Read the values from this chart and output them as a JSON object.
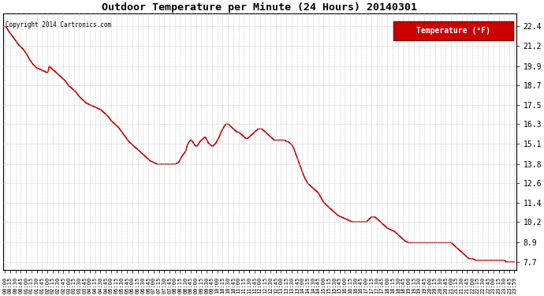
{
  "title": "Outdoor Temperature per Minute (24 Hours) 20140301",
  "copyright_text": "Copyright 2014 Cartronics.com",
  "legend_label": "Temperature (°F)",
  "line_color": "#cc0000",
  "background_color": "#ffffff",
  "grid_color": "#bbbbbb",
  "yticks": [
    7.7,
    8.9,
    10.2,
    11.4,
    12.6,
    13.8,
    15.1,
    16.3,
    17.5,
    18.7,
    19.9,
    21.2,
    22.4
  ],
  "ylim": [
    7.2,
    23.2
  ],
  "total_minutes": 1440,
  "temperature_profile": [
    [
      0,
      22.4
    ],
    [
      5,
      22.3
    ],
    [
      10,
      22.1
    ],
    [
      20,
      21.8
    ],
    [
      30,
      21.5
    ],
    [
      40,
      21.2
    ],
    [
      50,
      21.0
    ],
    [
      60,
      20.7
    ],
    [
      70,
      20.3
    ],
    [
      80,
      20.0
    ],
    [
      90,
      19.8
    ],
    [
      100,
      19.7
    ],
    [
      110,
      19.6
    ],
    [
      120,
      19.5
    ],
    [
      125,
      19.9
    ],
    [
      130,
      19.8
    ],
    [
      140,
      19.6
    ],
    [
      150,
      19.4
    ],
    [
      160,
      19.2
    ],
    [
      170,
      19.0
    ],
    [
      180,
      18.7
    ],
    [
      190,
      18.5
    ],
    [
      200,
      18.3
    ],
    [
      210,
      18.0
    ],
    [
      220,
      17.8
    ],
    [
      230,
      17.6
    ],
    [
      240,
      17.5
    ],
    [
      250,
      17.4
    ],
    [
      260,
      17.3
    ],
    [
      270,
      17.2
    ],
    [
      280,
      17.0
    ],
    [
      290,
      16.8
    ],
    [
      300,
      16.5
    ],
    [
      310,
      16.3
    ],
    [
      320,
      16.1
    ],
    [
      330,
      15.8
    ],
    [
      340,
      15.5
    ],
    [
      350,
      15.2
    ],
    [
      360,
      15.0
    ],
    [
      370,
      14.8
    ],
    [
      380,
      14.6
    ],
    [
      390,
      14.4
    ],
    [
      400,
      14.2
    ],
    [
      410,
      14.0
    ],
    [
      420,
      13.9
    ],
    [
      430,
      13.8
    ],
    [
      440,
      13.8
    ],
    [
      450,
      13.8
    ],
    [
      460,
      13.8
    ],
    [
      470,
      13.8
    ],
    [
      480,
      13.8
    ],
    [
      490,
      13.9
    ],
    [
      495,
      14.1
    ],
    [
      500,
      14.3
    ],
    [
      510,
      14.6
    ],
    [
      515,
      15.0
    ],
    [
      520,
      15.2
    ],
    [
      525,
      15.3
    ],
    [
      530,
      15.2
    ],
    [
      535,
      15.0
    ],
    [
      540,
      14.9
    ],
    [
      545,
      15.0
    ],
    [
      550,
      15.2
    ],
    [
      555,
      15.3
    ],
    [
      560,
      15.4
    ],
    [
      565,
      15.5
    ],
    [
      570,
      15.3
    ],
    [
      575,
      15.1
    ],
    [
      580,
      15.0
    ],
    [
      585,
      14.9
    ],
    [
      590,
      15.0
    ],
    [
      595,
      15.1
    ],
    [
      600,
      15.3
    ],
    [
      605,
      15.5
    ],
    [
      610,
      15.8
    ],
    [
      615,
      16.0
    ],
    [
      620,
      16.2
    ],
    [
      625,
      16.3
    ],
    [
      630,
      16.3
    ],
    [
      635,
      16.2
    ],
    [
      640,
      16.1
    ],
    [
      645,
      16.0
    ],
    [
      650,
      15.9
    ],
    [
      655,
      15.8
    ],
    [
      660,
      15.8
    ],
    [
      665,
      15.7
    ],
    [
      670,
      15.6
    ],
    [
      675,
      15.5
    ],
    [
      680,
      15.4
    ],
    [
      685,
      15.4
    ],
    [
      690,
      15.5
    ],
    [
      695,
      15.6
    ],
    [
      700,
      15.7
    ],
    [
      705,
      15.8
    ],
    [
      710,
      15.9
    ],
    [
      715,
      16.0
    ],
    [
      720,
      16.0
    ],
    [
      725,
      16.0
    ],
    [
      730,
      15.9
    ],
    [
      735,
      15.8
    ],
    [
      740,
      15.7
    ],
    [
      745,
      15.6
    ],
    [
      750,
      15.5
    ],
    [
      755,
      15.4
    ],
    [
      760,
      15.3
    ],
    [
      765,
      15.3
    ],
    [
      770,
      15.3
    ],
    [
      775,
      15.3
    ],
    [
      780,
      15.3
    ],
    [
      785,
      15.3
    ],
    [
      790,
      15.3
    ],
    [
      795,
      15.2
    ],
    [
      800,
      15.2
    ],
    [
      805,
      15.1
    ],
    [
      810,
      15.0
    ],
    [
      815,
      14.8
    ],
    [
      820,
      14.5
    ],
    [
      825,
      14.2
    ],
    [
      830,
      13.9
    ],
    [
      835,
      13.6
    ],
    [
      840,
      13.3
    ],
    [
      845,
      13.0
    ],
    [
      850,
      12.8
    ],
    [
      855,
      12.6
    ],
    [
      860,
      12.5
    ],
    [
      865,
      12.4
    ],
    [
      870,
      12.3
    ],
    [
      875,
      12.2
    ],
    [
      880,
      12.1
    ],
    [
      885,
      12.0
    ],
    [
      890,
      11.8
    ],
    [
      895,
      11.6
    ],
    [
      900,
      11.4
    ],
    [
      910,
      11.2
    ],
    [
      920,
      11.0
    ],
    [
      930,
      10.8
    ],
    [
      940,
      10.6
    ],
    [
      950,
      10.5
    ],
    [
      960,
      10.4
    ],
    [
      970,
      10.3
    ],
    [
      980,
      10.2
    ],
    [
      990,
      10.2
    ],
    [
      1000,
      10.2
    ],
    [
      1010,
      10.2
    ],
    [
      1020,
      10.2
    ],
    [
      1025,
      10.3
    ],
    [
      1030,
      10.4
    ],
    [
      1035,
      10.5
    ],
    [
      1040,
      10.5
    ],
    [
      1045,
      10.5
    ],
    [
      1050,
      10.4
    ],
    [
      1055,
      10.3
    ],
    [
      1060,
      10.2
    ],
    [
      1065,
      10.1
    ],
    [
      1070,
      10.0
    ],
    [
      1075,
      9.9
    ],
    [
      1080,
      9.8
    ],
    [
      1090,
      9.7
    ],
    [
      1100,
      9.6
    ],
    [
      1110,
      9.4
    ],
    [
      1120,
      9.2
    ],
    [
      1130,
      9.0
    ],
    [
      1140,
      8.9
    ],
    [
      1150,
      8.9
    ],
    [
      1160,
      8.9
    ],
    [
      1170,
      8.9
    ],
    [
      1175,
      8.9
    ],
    [
      1180,
      8.9
    ],
    [
      1185,
      8.9
    ],
    [
      1190,
      8.9
    ],
    [
      1195,
      8.9
    ],
    [
      1200,
      8.9
    ],
    [
      1205,
      8.9
    ],
    [
      1210,
      8.9
    ],
    [
      1215,
      8.9
    ],
    [
      1220,
      8.9
    ],
    [
      1225,
      8.9
    ],
    [
      1230,
      8.9
    ],
    [
      1235,
      8.9
    ],
    [
      1240,
      8.9
    ],
    [
      1250,
      8.9
    ],
    [
      1260,
      8.9
    ],
    [
      1270,
      8.7
    ],
    [
      1280,
      8.5
    ],
    [
      1290,
      8.3
    ],
    [
      1300,
      8.1
    ],
    [
      1310,
      7.9
    ],
    [
      1320,
      7.9
    ],
    [
      1330,
      7.8
    ],
    [
      1340,
      7.8
    ],
    [
      1350,
      7.8
    ],
    [
      1360,
      7.8
    ],
    [
      1370,
      7.8
    ],
    [
      1380,
      7.8
    ],
    [
      1390,
      7.8
    ],
    [
      1400,
      7.8
    ],
    [
      1410,
      7.8
    ],
    [
      1415,
      7.7
    ],
    [
      1420,
      7.7
    ],
    [
      1425,
      7.7
    ],
    [
      1430,
      7.7
    ],
    [
      1435,
      7.7
    ],
    [
      1439,
      7.7
    ]
  ],
  "xtick_minutes": [
    0,
    15,
    30,
    45,
    60,
    75,
    90,
    105,
    120,
    135,
    150,
    165,
    180,
    195,
    210,
    225,
    240,
    255,
    270,
    285,
    300,
    315,
    330,
    345,
    360,
    375,
    390,
    405,
    420,
    435,
    450,
    465,
    480,
    495,
    510,
    525,
    540,
    555,
    570,
    585,
    600,
    615,
    630,
    645,
    660,
    675,
    690,
    705,
    720,
    735,
    750,
    765,
    780,
    795,
    810,
    825,
    840,
    855,
    870,
    885,
    900,
    915,
    930,
    945,
    960,
    975,
    990,
    1005,
    1020,
    1035,
    1050,
    1065,
    1080,
    1095,
    1110,
    1125,
    1140,
    1155,
    1170,
    1185,
    1200,
    1215,
    1230,
    1245,
    1260,
    1275,
    1290,
    1305,
    1320,
    1335,
    1350,
    1365,
    1380,
    1395,
    1410,
    1425,
    1439
  ]
}
